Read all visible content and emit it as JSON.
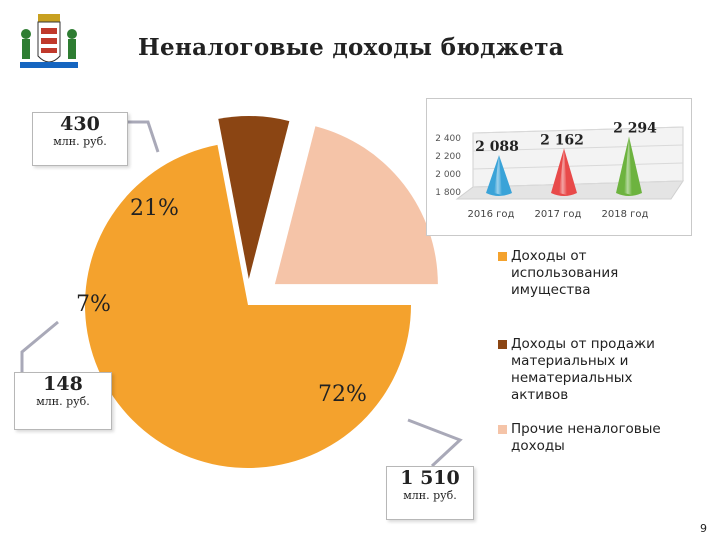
{
  "slide": {
    "title": "Неналоговые доходы бюджета",
    "page_number": "9"
  },
  "emblem": {
    "icon": "city-coat-of-arms-icon"
  },
  "callouts": [
    {
      "value": "430",
      "unit": "млн. руб."
    },
    {
      "value": "148",
      "unit": "млн. руб."
    },
    {
      "value": "1 510",
      "unit": "млн. руб."
    }
  ],
  "colors": {
    "income_property": "#f4a22d",
    "sale_assets": "#8b4513",
    "other": "#f5c4a8"
  },
  "chart_data": [
    {
      "type": "pie",
      "slices": [
        {
          "name": "Доходы от использования имущества",
          "value": 72,
          "label": "72%",
          "amount": 1510,
          "color": "#f4a22d"
        },
        {
          "name": "Доходы от продажи материальных и нематериальных активов",
          "value": 7,
          "label": "7%",
          "amount": 148,
          "color": "#8b4513"
        },
        {
          "name": "Прочие неналоговые доходы",
          "value": 21,
          "label": "21%",
          "amount": 430,
          "color": "#f5c4a8"
        }
      ],
      "legend": [
        "Доходы от использования имущества",
        "Доходы от продажи материальных и нематериальных активов",
        "Прочие неналоговые доходы"
      ],
      "legend_position": "right"
    },
    {
      "type": "bar",
      "style": "3d-cone",
      "categories": [
        "2016 год",
        "2017 год",
        "2018 год"
      ],
      "values": [
        2088,
        2162,
        2294
      ],
      "labels": [
        "2 088",
        "2 162",
        "2 294"
      ],
      "colors": [
        "#3aa3d8",
        "#e84a4a",
        "#6db33f"
      ],
      "ylim": [
        1800,
        2400
      ],
      "yticks": [
        "1 800",
        "2 000",
        "2 200",
        "2 400"
      ],
      "grid": true
    }
  ]
}
